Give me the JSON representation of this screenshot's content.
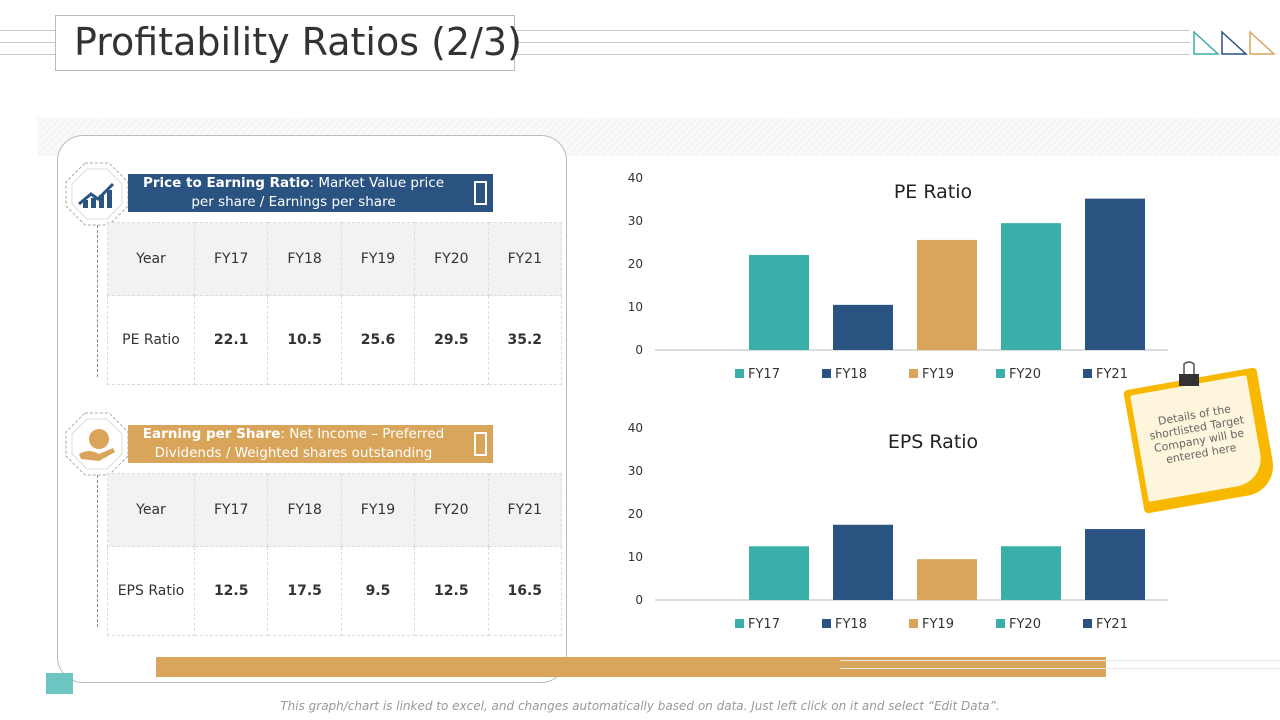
{
  "header": {
    "title": "Profitability Ratios (2/3)"
  },
  "sections": [
    {
      "term": "Price to Earning Ratio",
      "definition": ": Market Value price per share / Earnings per share",
      "table": {
        "header": [
          "Year",
          "FY17",
          "FY18",
          "FY19",
          "FY20",
          "FY21"
        ],
        "row": [
          "PE Ratio",
          "22.1",
          "10.5",
          "25.6",
          "29.5",
          "35.2"
        ]
      }
    },
    {
      "term": "Earning per Share",
      "definition": ": Net Income – Preferred Dividends / Weighted shares outstanding",
      "table": {
        "header": [
          "Year",
          "FY17",
          "FY18",
          "FY19",
          "FY20",
          "FY21"
        ],
        "row": [
          "EPS Ratio",
          "12.5",
          "17.5",
          "9.5",
          "12.5",
          "16.5"
        ]
      }
    }
  ],
  "chart_data": [
    {
      "type": "bar",
      "title": "PE Ratio",
      "categories": [
        "FY17",
        "FY18",
        "FY19",
        "FY20",
        "FY21"
      ],
      "values": [
        22.1,
        10.5,
        25.6,
        29.5,
        35.2
      ],
      "colors": [
        "#3aafa9",
        "#2b5382",
        "#d9a55b",
        "#3aafa9",
        "#2b5382"
      ],
      "ylim": [
        0,
        40
      ],
      "yticks": [
        0,
        10,
        20,
        30,
        40
      ],
      "grid": false,
      "legend": "bottom"
    },
    {
      "type": "bar",
      "title": "EPS Ratio",
      "categories": [
        "FY17",
        "FY18",
        "FY19",
        "FY20",
        "FY21"
      ],
      "values": [
        12.5,
        17.5,
        9.5,
        12.5,
        16.5
      ],
      "colors": [
        "#3aafa9",
        "#2b5382",
        "#d9a55b",
        "#3aafa9",
        "#2b5382"
      ],
      "ylim": [
        0,
        40
      ],
      "yticks": [
        0,
        10,
        20,
        30,
        40
      ],
      "grid": false,
      "legend": "bottom"
    }
  ],
  "note": "Details of the shortlisted Target Company will be entered here",
  "footer": "This graph/chart is linked to excel, and changes automatically based on data. Just left click on it and select “Edit Data”."
}
